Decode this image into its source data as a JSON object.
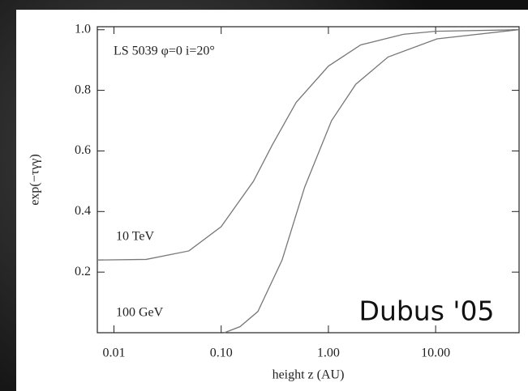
{
  "chart_data": {
    "type": "line",
    "annotations": [
      "LS 5039 φ=0 i=20°",
      "10 TeV",
      "100 GeV",
      "Dubus '05"
    ],
    "x_label": "height z (AU)",
    "y_label": "exp(−τγγ)",
    "xscale": "log",
    "xlim": [
      0.007,
      60
    ],
    "xticks": [
      0.01,
      {
        "value": 0.1,
        "label": "0.10"
      },
      {
        "value": 1,
        "label": "1.00"
      },
      {
        "value": 10,
        "label": "10.00"
      }
    ],
    "ylim": [
      0,
      1.01
    ],
    "yticks": [
      0.2,
      0.4,
      0.6,
      0.8,
      {
        "value": 1,
        "label": "1.0"
      }
    ],
    "series": [
      {
        "name": "10 TeV",
        "color": "#777777",
        "x": [
          0.007,
          0.02,
          0.05,
          0.1,
          0.2,
          0.3,
          0.5,
          1,
          2,
          5,
          10,
          60
        ],
        "values": [
          0.24,
          0.242,
          0.27,
          0.35,
          0.5,
          0.62,
          0.76,
          0.88,
          0.95,
          0.985,
          0.995,
          1.0
        ]
      },
      {
        "name": "100 GeV",
        "color": "#777777",
        "x": [
          0.107,
          0.15,
          0.22,
          0.37,
          0.6,
          1.07,
          1.8,
          3.6,
          10.3,
          59
        ],
        "values": [
          0.0,
          0.02,
          0.07,
          0.24,
          0.48,
          0.7,
          0.82,
          0.91,
          0.97,
          1.0
        ]
      }
    ]
  }
}
